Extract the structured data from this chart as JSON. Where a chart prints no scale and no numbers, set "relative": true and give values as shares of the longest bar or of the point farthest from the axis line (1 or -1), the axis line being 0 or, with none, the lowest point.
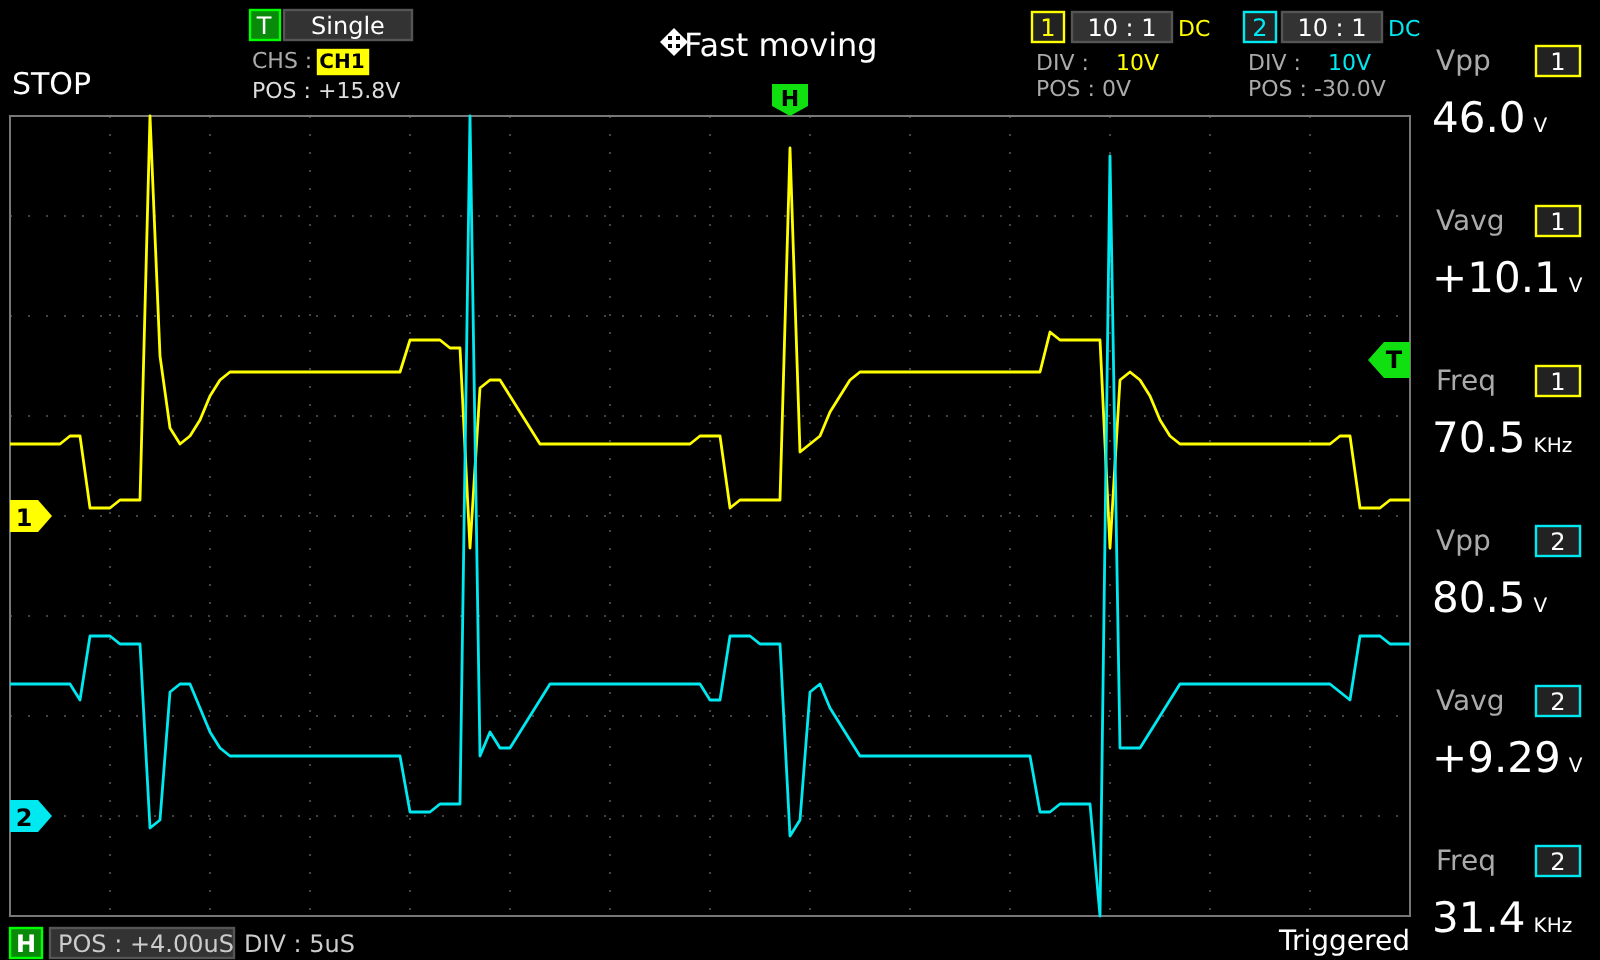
{
  "chart_data": {
    "type": "line",
    "relative": true,
    "grid": true,
    "categories": [
      null,
      null,
      null,
      null,
      null,
      null,
      null,
      null,
      null,
      null,
      null,
      null,
      null,
      null,
      null,
      null,
      null,
      null,
      null,
      null,
      null,
      null,
      null,
      null,
      null,
      null,
      null,
      null,
      null,
      null,
      null,
      null,
      null,
      null,
      null,
      null,
      null,
      null,
      null,
      null,
      null,
      null,
      null,
      null,
      null,
      null,
      null,
      null,
      null,
      null,
      null,
      null,
      null,
      null,
      null,
      null,
      null,
      null,
      null,
      null,
      null,
      null,
      null,
      null,
      null,
      null,
      null,
      null,
      null,
      null,
      null,
      null,
      null,
      null,
      null,
      null,
      null,
      null,
      null,
      null,
      null,
      null,
      null,
      null,
      null,
      null,
      null,
      null,
      null,
      null,
      null,
      null,
      null,
      null,
      null,
      null,
      null,
      null,
      null,
      null,
      null,
      null,
      null,
      null,
      null,
      null,
      null,
      null,
      null,
      null,
      null,
      null,
      null,
      null,
      null,
      null,
      null,
      null,
      null,
      null,
      null,
      null,
      null,
      null,
      null,
      null,
      null,
      null,
      null,
      null,
      null,
      null,
      null,
      null,
      null,
      null,
      null,
      null,
      null,
      null,
      null
    ],
    "series": [
      {
        "name": "1",
        "color": "#ffff00",
        "values": [
          0.59,
          0.59,
          0.59,
          0.59,
          0.59,
          0.59,
          0.6,
          0.6,
          0.51,
          0.51,
          0.51,
          0.52,
          0.52,
          0.52,
          1,
          0.7,
          0.61,
          0.59,
          0.6,
          0.62,
          0.65,
          0.67,
          0.68,
          0.68,
          0.68,
          0.68,
          0.68,
          0.68,
          0.68,
          0.68,
          0.68,
          0.68,
          0.68,
          0.68,
          0.68,
          0.68,
          0.68,
          0.68,
          0.68,
          0.68,
          0.72,
          0.72,
          0.72,
          0.72,
          0.71,
          0.71,
          0.46,
          0.66,
          0.67,
          0.67,
          0.65,
          0.63,
          0.61,
          0.59,
          0.59,
          0.59,
          0.59,
          0.59,
          0.59,
          0.59,
          0.59,
          0.59,
          0.59,
          0.59,
          0.59,
          0.59,
          0.59,
          0.59,
          0.59,
          0.6,
          0.6,
          0.6,
          0.51,
          0.52,
          0.52,
          0.52,
          0.52,
          0.52,
          0.96,
          0.58,
          0.59,
          0.6,
          0.63,
          0.65,
          0.67,
          0.68,
          0.68,
          0.68,
          0.68,
          0.68,
          0.68,
          0.68,
          0.68,
          0.68,
          0.68,
          0.68,
          0.68,
          0.68,
          0.68,
          0.68,
          0.68,
          0.68,
          0.68,
          0.68,
          0.73,
          0.72,
          0.72,
          0.72,
          0.72,
          0.72,
          0.46,
          0.67,
          0.68,
          0.67,
          0.65,
          0.62,
          0.6,
          0.59,
          0.59,
          0.59,
          0.59,
          0.59,
          0.59,
          0.59,
          0.59,
          0.59,
          0.59,
          0.59,
          0.59,
          0.59,
          0.59,
          0.59,
          0.59,
          0.6,
          0.6,
          0.51,
          0.51,
          0.51,
          0.52,
          0.52,
          0.52
        ]
      },
      {
        "name": "2",
        "color": "#00e8f0",
        "values": [
          0.29,
          0.29,
          0.29,
          0.29,
          0.29,
          0.29,
          0.29,
          0.27,
          0.35,
          0.35,
          0.35,
          0.34,
          0.34,
          0.34,
          0.11,
          0.12,
          0.28,
          0.29,
          0.29,
          0.26,
          0.23,
          0.21,
          0.2,
          0.2,
          0.2,
          0.2,
          0.2,
          0.2,
          0.2,
          0.2,
          0.2,
          0.2,
          0.2,
          0.2,
          0.2,
          0.2,
          0.2,
          0.2,
          0.2,
          0.2,
          0.13,
          0.13,
          0.13,
          0.14,
          0.14,
          0.14,
          1,
          0.2,
          0.23,
          0.21,
          0.21,
          0.23,
          0.25,
          0.27,
          0.29,
          0.29,
          0.29,
          0.29,
          0.29,
          0.29,
          0.29,
          0.29,
          0.29,
          0.29,
          0.29,
          0.29,
          0.29,
          0.29,
          0.29,
          0.29,
          0.27,
          0.27,
          0.35,
          0.35,
          0.35,
          0.34,
          0.34,
          0.34,
          0.1,
          0.12,
          0.28,
          0.29,
          0.26,
          0.24,
          0.22,
          0.2,
          0.2,
          0.2,
          0.2,
          0.2,
          0.2,
          0.2,
          0.2,
          0.2,
          0.2,
          0.2,
          0.2,
          0.2,
          0.2,
          0.2,
          0.2,
          0.2,
          0.2,
          0.13,
          0.13,
          0.14,
          0.14,
          0.14,
          0.14,
          0,
          0.95,
          0.21,
          0.21,
          0.21,
          0.23,
          0.25,
          0.27,
          0.29,
          0.29,
          0.29,
          0.29,
          0.29,
          0.29,
          0.29,
          0.29,
          0.29,
          0.29,
          0.29,
          0.29,
          0.29,
          0.29,
          0.29,
          0.29,
          0.28,
          0.27,
          0.35,
          0.35,
          0.35,
          0.34,
          0.34,
          0.34
        ]
      }
    ],
    "annotations": [
      "STOP",
      "T",
      "Single",
      "CHS :",
      "CH1",
      "POS : +15.8V",
      "Fast moving",
      "1",
      "10 : 1",
      "DC",
      "DIV :",
      "10V",
      "POS : 0V",
      "2",
      "10 : 1",
      "DC",
      "DIV :",
      "10V",
      "POS : -30.0V",
      "Vpp",
      "1",
      "46.0",
      "V",
      "Vavg",
      "1",
      "+10.1",
      "V",
      "Freq",
      "1",
      "70.5",
      "KHz",
      "Vpp",
      "2",
      "80.5",
      "V",
      "Vavg",
      "2",
      "+9.29",
      "V",
      "Freq",
      "2",
      "31.4",
      "KHz",
      "H",
      "POS : +4.00uS",
      "DIV : 5uS",
      "Triggered",
      "H",
      "T"
    ]
  }
}
